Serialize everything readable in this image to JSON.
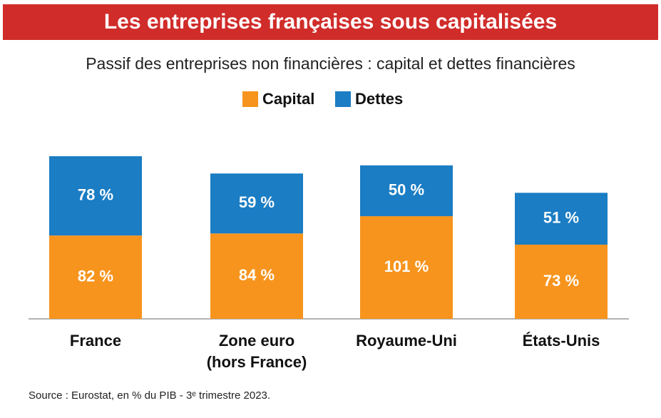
{
  "chart_data": {
    "type": "stacked_bar",
    "title": "Les entreprises françaises sous capitalisées",
    "subtitle": "Passif des entreprises non financières : capital et dettes financières",
    "categories": [
      "France",
      "Zone euro\n(hors France)",
      "Royaume-Uni",
      "États-Unis"
    ],
    "series": [
      {
        "name": "Capital",
        "color": "#f7941d",
        "values": [
          82,
          84,
          101,
          73
        ],
        "value_labels": [
          "82 %",
          "84 %",
          "101 %",
          "73 %"
        ]
      },
      {
        "name": "Dettes",
        "color": "#1b7dc3",
        "values": [
          78,
          59,
          50,
          51
        ],
        "value_labels": [
          "78 %",
          "59 %",
          "50 %",
          "51 %"
        ]
      }
    ],
    "source": "Source : Eurostat, en % du PIB - 3ᵉ trimestre 2023."
  }
}
